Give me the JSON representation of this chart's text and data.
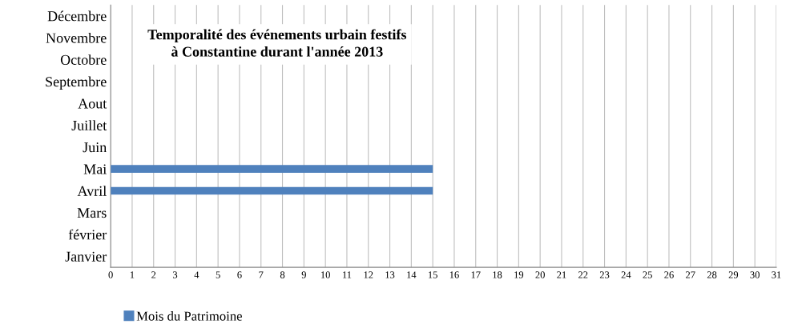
{
  "chart_data": {
    "type": "bar",
    "orientation": "horizontal",
    "title": "Temporalité des événements urbain festifs\nà Constantine durant l'année 2013",
    "categories": [
      "Décembre",
      "Novembre",
      "Octobre",
      "Septembre",
      "Aout",
      "Juillet",
      "Juin",
      "Mai",
      "Avril",
      "Mars",
      "février",
      "Janvier"
    ],
    "series": [
      {
        "name": "Mois du Patrimoine",
        "color": "#4f81bd",
        "values": [
          null,
          null,
          null,
          null,
          null,
          null,
          null,
          15,
          15,
          null,
          null,
          null
        ]
      }
    ],
    "xlim": [
      0,
      31
    ],
    "xticks": [
      0,
      1,
      2,
      3,
      4,
      5,
      6,
      7,
      8,
      9,
      10,
      11,
      12,
      13,
      14,
      15,
      16,
      17,
      18,
      19,
      20,
      21,
      22,
      23,
      24,
      25,
      26,
      27,
      28,
      29,
      30,
      31
    ],
    "grid": "x",
    "legend": "bottom left"
  }
}
